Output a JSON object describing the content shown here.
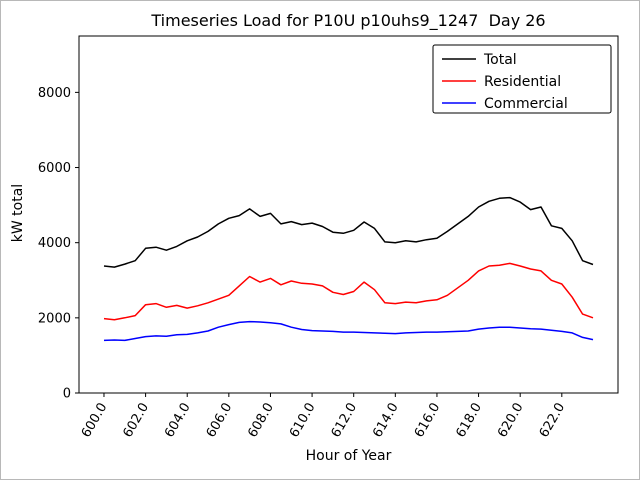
{
  "figure": {
    "title": "Timeseries Load for P10U p10uhs9_1247  Day 26",
    "xlabel": "Hour of Year",
    "ylabel": "kW total",
    "background_color": "#ffffff",
    "axes_color": "#000000"
  },
  "chart_data": {
    "type": "line",
    "title": "Timeseries Load for P10U p10uhs9_1247  Day 26",
    "xlabel": "Hour of Year",
    "ylabel": "kW total",
    "grid": false,
    "legend_position": "upper right",
    "x_start": 600.0,
    "x_step": 0.5,
    "xlim": [
      598.8,
      624.7
    ],
    "ylim": [
      0,
      9500
    ],
    "xtick_values": [
      600,
      602,
      604,
      606,
      608,
      610,
      612,
      614,
      616,
      618,
      620,
      622
    ],
    "xtick_labels": [
      "600.0",
      "602.0",
      "604.0",
      "606.0",
      "608.0",
      "610.0",
      "612.0",
      "614.0",
      "616.0",
      "618.0",
      "620.0",
      "622.0"
    ],
    "ytick_values": [
      0,
      2000,
      4000,
      6000,
      8000
    ],
    "ytick_labels": [
      "0",
      "2000",
      "4000",
      "6000",
      "8000"
    ],
    "series": [
      {
        "name": "Total",
        "color": "#000000",
        "values": [
          3380,
          3350,
          3430,
          3520,
          3850,
          3880,
          3800,
          3900,
          4050,
          4150,
          4300,
          4500,
          4650,
          4720,
          4900,
          4700,
          4780,
          4500,
          4560,
          4480,
          4520,
          4430,
          4280,
          4250,
          4330,
          4550,
          4380,
          4020,
          4000,
          4050,
          4020,
          4080,
          4120,
          4300,
          4500,
          4700,
          4950,
          5100,
          5180,
          5200,
          5080,
          4880,
          4950,
          4450,
          4380,
          4050,
          3520,
          3420
        ]
      },
      {
        "name": "Residential",
        "color": "#ff0000",
        "values": [
          1980,
          1950,
          2000,
          2060,
          2350,
          2380,
          2280,
          2330,
          2260,
          2320,
          2400,
          2500,
          2600,
          2850,
          3100,
          2950,
          3050,
          2880,
          2980,
          2920,
          2900,
          2850,
          2680,
          2620,
          2700,
          2950,
          2750,
          2400,
          2380,
          2420,
          2400,
          2450,
          2480,
          2600,
          2800,
          3000,
          3250,
          3380,
          3400,
          3450,
          3380,
          3300,
          3250,
          3000,
          2900,
          2550,
          2100,
          2000
        ]
      },
      {
        "name": "Commercial",
        "color": "#0000ff",
        "values": [
          1400,
          1410,
          1400,
          1450,
          1500,
          1520,
          1510,
          1550,
          1560,
          1600,
          1650,
          1750,
          1820,
          1880,
          1900,
          1890,
          1870,
          1840,
          1750,
          1690,
          1660,
          1650,
          1640,
          1620,
          1620,
          1610,
          1600,
          1590,
          1580,
          1600,
          1610,
          1620,
          1620,
          1630,
          1640,
          1650,
          1700,
          1730,
          1750,
          1750,
          1730,
          1710,
          1700,
          1670,
          1640,
          1600,
          1480,
          1420
        ]
      }
    ]
  }
}
